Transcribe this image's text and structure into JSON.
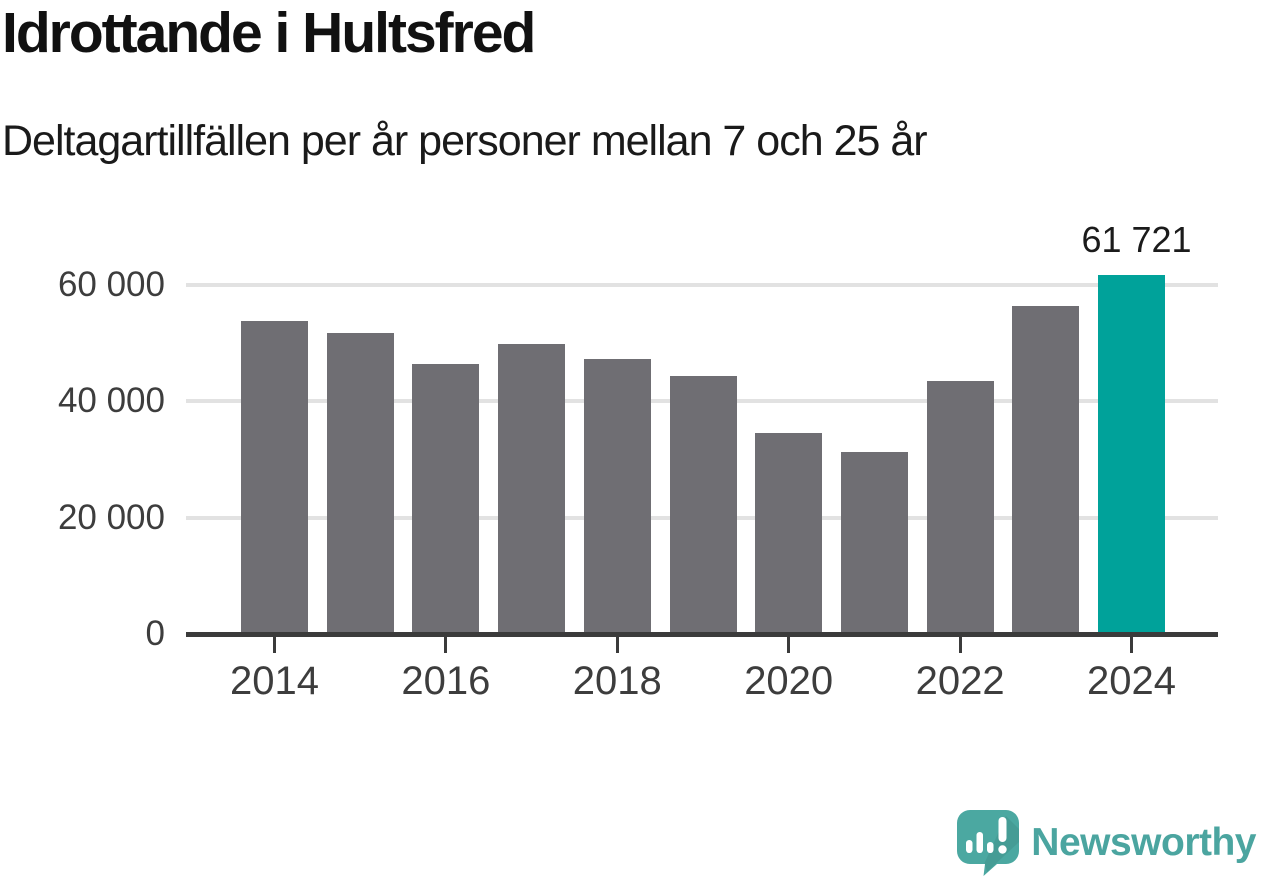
{
  "title": "Idrottande i Hultsfred",
  "subtitle": "Deltagartillfällen per år personer mellan 7 och 25 år",
  "chart_data": {
    "type": "bar",
    "title": "Idrottande i Hultsfred",
    "subtitle": "Deltagartillfällen per år personer mellan 7 och 25 år",
    "categories": [
      2014,
      2015,
      2016,
      2017,
      2018,
      2019,
      2020,
      2021,
      2022,
      2023,
      2024
    ],
    "values": [
      53800,
      51700,
      46400,
      49900,
      47300,
      44400,
      34600,
      31300,
      43500,
      56400,
      61721
    ],
    "highlight_index": 10,
    "highlight_value_label": "61 721",
    "xticks": [
      2014,
      2016,
      2018,
      2020,
      2022,
      2024
    ],
    "yticks": [
      {
        "value": 0,
        "label": "0"
      },
      {
        "value": 20000,
        "label": "20 000"
      },
      {
        "value": 40000,
        "label": "40 000"
      },
      {
        "value": 60000,
        "label": "60 000"
      }
    ],
    "ylim": [
      0,
      65000
    ],
    "grid": "horizontal",
    "legend": "none",
    "colors": {
      "bar": "#6f6e73",
      "highlight": "#00a29a",
      "grid": "#e2e2e2",
      "axis": "#3b3b3b",
      "tick_label": "#3d3d3d",
      "value_label": "#1b1b1b"
    }
  },
  "branding": {
    "logo_text": "Newsworthy",
    "logo_color": "#4ba5a0",
    "logo_icon": "newsworthy-bubble-chart-icon"
  }
}
